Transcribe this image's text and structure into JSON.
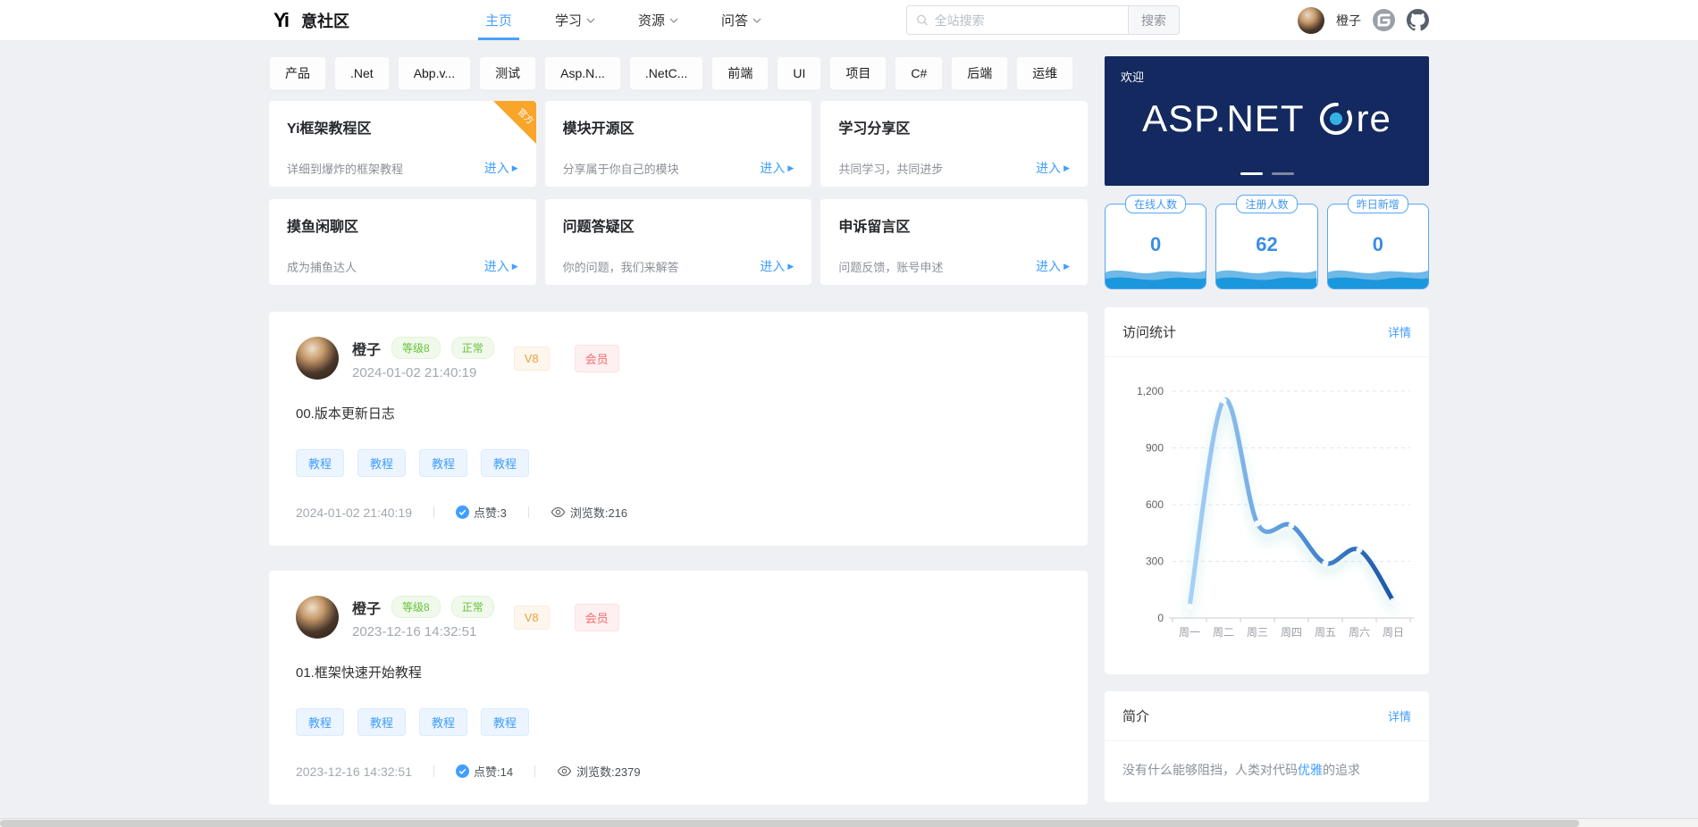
{
  "header": {
    "brand": "意社区",
    "logo_glyph": "Yi",
    "nav": [
      {
        "label": "主页",
        "active": true
      },
      {
        "label": "学习",
        "active": false
      },
      {
        "label": "资源",
        "active": false
      },
      {
        "label": "问答",
        "active": false
      }
    ],
    "search": {
      "placeholder": "全站搜索",
      "button": "搜索"
    },
    "user": {
      "name": "橙子"
    },
    "icons": [
      "gitee-icon",
      "github-icon"
    ]
  },
  "tags": [
    "产品",
    ".Net",
    "Abp.v...",
    "测试",
    "Asp.N...",
    ".NetC...",
    "前端",
    "UI",
    "项目",
    "C#",
    "后端",
    "运维"
  ],
  "enter_label": "进入",
  "boards": [
    {
      "title": "Yi框架教程区",
      "desc": "详细到爆炸的框架教程",
      "ribbon": "官方"
    },
    {
      "title": "模块开源区",
      "desc": "分享属于你自己的模块",
      "ribbon": ""
    },
    {
      "title": "学习分享区",
      "desc": "共同学习，共同进步",
      "ribbon": ""
    },
    {
      "title": "摸鱼闲聊区",
      "desc": "成为捕鱼达人",
      "ribbon": ""
    },
    {
      "title": "问题答疑区",
      "desc": "你的问题，我们来解答",
      "ribbon": ""
    },
    {
      "title": "申诉留言区",
      "desc": "问题反馈，账号申述",
      "ribbon": ""
    }
  ],
  "posts": [
    {
      "author": "橙子",
      "level": "等级8",
      "status": "正常",
      "vip": "V8",
      "member": "会员",
      "time": "2024-01-02 21:40:19",
      "title": "00.版本更新日志",
      "tags": [
        "教程",
        "教程",
        "教程",
        "教程"
      ],
      "footer_time": "2024-01-02 21:40:19",
      "likes": "点赞:3",
      "views": "浏览数:216"
    },
    {
      "author": "橙子",
      "level": "等级8",
      "status": "正常",
      "vip": "V8",
      "member": "会员",
      "time": "2023-12-16 14:32:51",
      "title": "01.框架快速开始教程",
      "tags": [
        "教程",
        "教程",
        "教程",
        "教程"
      ],
      "footer_time": "2023-12-16 14:32:51",
      "likes": "点赞:14",
      "views": "浏览数:2379"
    }
  ],
  "sidebar": {
    "banner": {
      "welcome": "欢迎",
      "headline_full": "ASP.NET Core",
      "headline_left": "ASP.NET",
      "headline_right": "re"
    },
    "stats": [
      {
        "label": "在线人数",
        "value": "0"
      },
      {
        "label": "注册人数",
        "value": "62"
      },
      {
        "label": "昨日新增",
        "value": "0"
      }
    ],
    "visit": {
      "title": "访问统计",
      "more": "详情"
    },
    "intro": {
      "title": "简介",
      "more": "详情",
      "text_before": "没有什么能够阻挡，人类对代码",
      "text_link": "优雅",
      "text_after": "的追求"
    }
  },
  "chart_data": {
    "type": "line",
    "title": "访问统计",
    "categories": [
      "周一",
      "周二",
      "周三",
      "周四",
      "周五",
      "周六",
      "周日"
    ],
    "values": [
      60,
      1150,
      500,
      490,
      290,
      360,
      90
    ],
    "xlabel": "",
    "ylabel": "",
    "ylim": [
      0,
      1200
    ],
    "yticks": [
      0,
      300,
      600,
      900,
      1200
    ],
    "ytick_labels": [
      "0",
      "300",
      "600",
      "900",
      "1,200"
    ],
    "grid": "dashed-horizontal",
    "legend": "none",
    "style": {
      "smooth": true,
      "gradient": [
        "#a9d2f6",
        "#5596db",
        "#1b55a8"
      ],
      "markers": "white-dots"
    }
  },
  "colors": {
    "accent": "#409eff",
    "banner_bg": "#13295f",
    "stat_border": "#57a7f3",
    "green": "#67c23a",
    "orange": "#e6a23c",
    "red": "#f56c6c",
    "ribbon": "#f9a52a"
  }
}
